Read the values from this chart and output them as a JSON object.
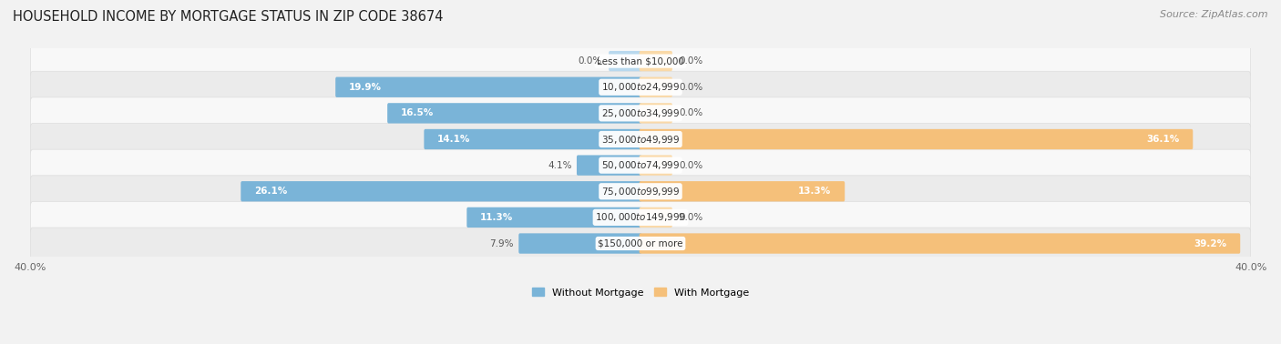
{
  "title": "HOUSEHOLD INCOME BY MORTGAGE STATUS IN ZIP CODE 38674",
  "source": "Source: ZipAtlas.com",
  "categories": [
    "Less than $10,000",
    "$10,000 to $24,999",
    "$25,000 to $34,999",
    "$35,000 to $49,999",
    "$50,000 to $74,999",
    "$75,000 to $99,999",
    "$100,000 to $149,999",
    "$150,000 or more"
  ],
  "without_mortgage": [
    0.0,
    19.9,
    16.5,
    14.1,
    4.1,
    26.1,
    11.3,
    7.9
  ],
  "with_mortgage": [
    0.0,
    0.0,
    0.0,
    36.1,
    0.0,
    13.3,
    0.0,
    39.2
  ],
  "color_without": "#7ab4d8",
  "color_with": "#f5c07a",
  "color_without_light": "#b8d8ee",
  "color_with_light": "#fad9a8",
  "axis_limit": 40.0,
  "bg_color": "#f2f2f2",
  "row_bg_even": "#f8f8f8",
  "row_bg_odd": "#ebebeb",
  "title_fontsize": 10.5,
  "source_fontsize": 8,
  "label_fontsize": 7.5,
  "category_fontsize": 7.5,
  "axis_label_fontsize": 8
}
